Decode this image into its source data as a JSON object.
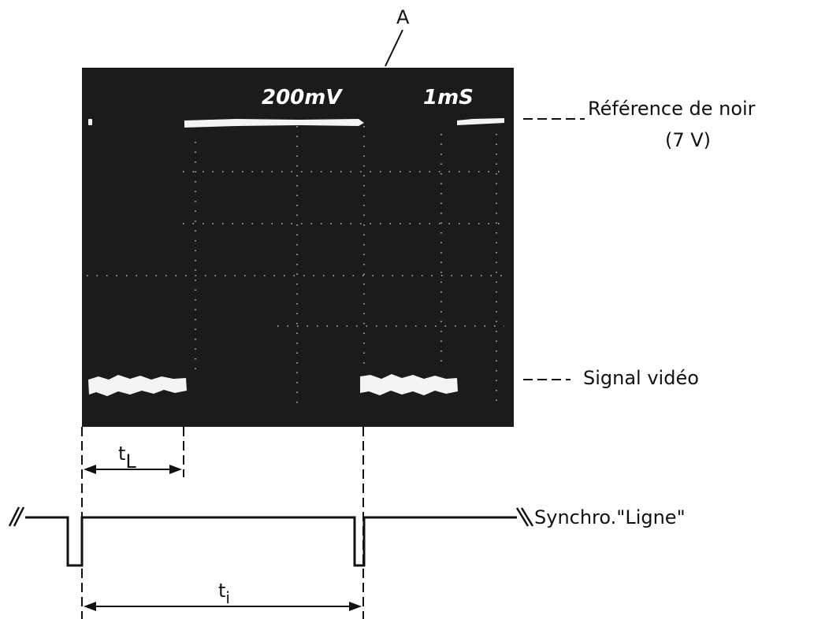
{
  "colors": {
    "screen": "#1b1b1b",
    "trace": "#f4f4f4",
    "graticule": "#dcdcdc",
    "ink": "#111111",
    "paper": "#ffffff"
  },
  "screen": {
    "marker_label": "A",
    "volts_per_div": "200mV",
    "time_per_div": "1mS"
  },
  "annotations": {
    "black_reference": "Référence de noir",
    "black_reference_value": "(7 V)",
    "video_signal": "Signal vidéo",
    "line_sync": "Synchro.\"Ligne\""
  },
  "timing": {
    "t_line_blank": "t",
    "t_line_blank_sub": "L",
    "t_interval": "t",
    "t_interval_sub": "i"
  }
}
